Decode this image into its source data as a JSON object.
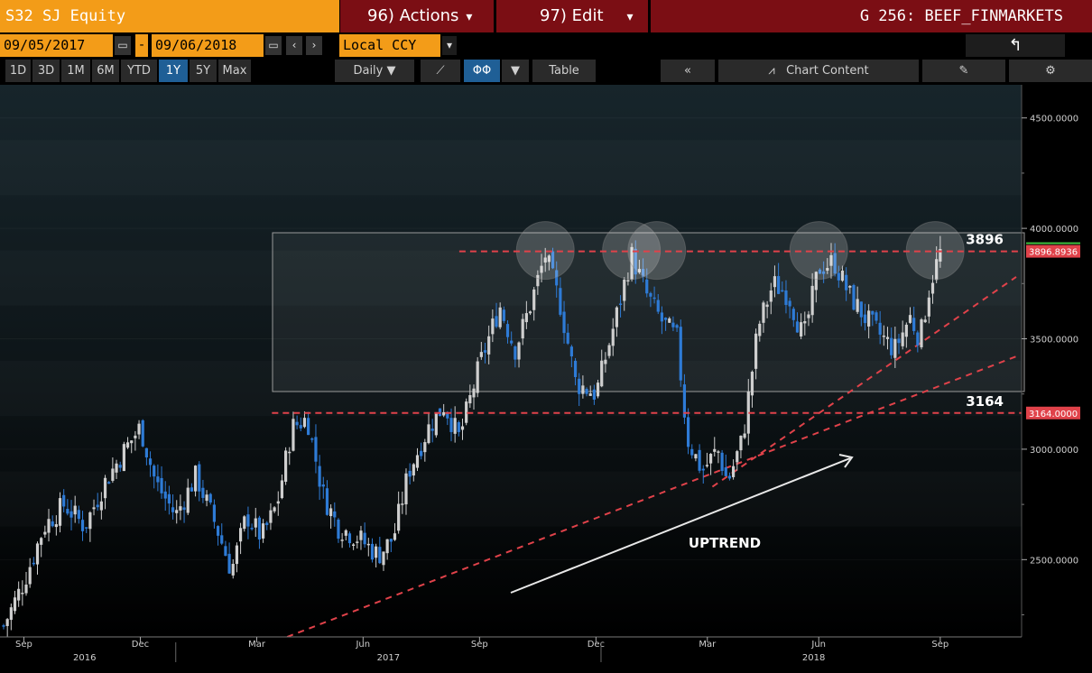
{
  "header": {
    "ticker": "S32 SJ Equity",
    "actions_label": "96) Actions",
    "edit_label": "97) Edit",
    "title": "G 256: BEEF_FINMARKETS"
  },
  "dates": {
    "start": "09/05/2017",
    "end": "09/06/2018",
    "separator": "-",
    "currency": "Local CCY"
  },
  "toolbar": {
    "periods": [
      "1D",
      "3D",
      "1M",
      "6M",
      "YTD",
      "1Y",
      "5Y",
      "Max"
    ],
    "selected_period": "1Y",
    "frequency": "Daily",
    "table_label": "Table",
    "collapse_label": "«",
    "chart_content_label": "Chart Content"
  },
  "colors": {
    "accent_orange": "#f39c18",
    "header_red": "#7b0e14",
    "selected_blue": "#1f5f96",
    "candle_up": "#cfcfcf",
    "candle_down": "#2e7bd6",
    "level_line": "#e0424a"
  },
  "chart_data": {
    "type": "candlestick",
    "y_axis": {
      "ylim": [
        2150,
        4650
      ],
      "ticks": [
        2500,
        3000,
        3500,
        4000,
        4500
      ],
      "tick_labels": [
        "2500.0000",
        "3000.0000",
        "3500.0000",
        "4000.0000",
        "4500.0000"
      ],
      "position": "right"
    },
    "x_axis": {
      "month_labels": [
        "Sep",
        "Dec",
        "Mar",
        "Jun",
        "Sep",
        "Dec",
        "Mar",
        "Jun",
        "Sep"
      ],
      "year_labels": [
        "2016",
        "2017",
        "2018"
      ]
    },
    "levels": [
      {
        "value": 3896,
        "label": "3896",
        "tag": "3896.8936"
      },
      {
        "value": 3164,
        "label": "3164",
        "tag": "3164.0000"
      }
    ],
    "last_price": 3896.8936,
    "annotations": [
      "UPTREND"
    ],
    "close_path": [
      [
        0,
        2200
      ],
      [
        0.02,
        2400
      ],
      [
        0.04,
        2650
      ],
      [
        0.06,
        2750
      ],
      [
        0.08,
        2650
      ],
      [
        0.1,
        2850
      ],
      [
        0.12,
        3000
      ],
      [
        0.135,
        3100
      ],
      [
        0.15,
        2850
      ],
      [
        0.17,
        2700
      ],
      [
        0.19,
        2880
      ],
      [
        0.21,
        2650
      ],
      [
        0.225,
        2450
      ],
      [
        0.24,
        2700
      ],
      [
        0.255,
        2600
      ],
      [
        0.27,
        2750
      ],
      [
        0.285,
        3100
      ],
      [
        0.3,
        3140
      ],
      [
        0.315,
        2800
      ],
      [
        0.33,
        2650
      ],
      [
        0.35,
        2600
      ],
      [
        0.37,
        2520
      ],
      [
        0.385,
        2600
      ],
      [
        0.4,
        2900
      ],
      [
        0.42,
        3100
      ],
      [
        0.435,
        3200
      ],
      [
        0.45,
        3050
      ],
      [
        0.47,
        3380
      ],
      [
        0.49,
        3650
      ],
      [
        0.505,
        3450
      ],
      [
        0.52,
        3650
      ],
      [
        0.535,
        3880
      ],
      [
        0.55,
        3650
      ],
      [
        0.565,
        3300
      ],
      [
        0.585,
        3250
      ],
      [
        0.605,
        3600
      ],
      [
        0.62,
        3880
      ],
      [
        0.635,
        3700
      ],
      [
        0.65,
        3580
      ],
      [
        0.665,
        3500
      ],
      [
        0.675,
        3050
      ],
      [
        0.69,
        2900
      ],
      [
        0.705,
        3000
      ],
      [
        0.715,
        2850
      ],
      [
        0.73,
        3050
      ],
      [
        0.745,
        3550
      ],
      [
        0.76,
        3750
      ],
      [
        0.775,
        3700
      ],
      [
        0.79,
        3500
      ],
      [
        0.805,
        3820
      ],
      [
        0.82,
        3850
      ],
      [
        0.835,
        3700
      ],
      [
        0.85,
        3600
      ],
      [
        0.865,
        3520
      ],
      [
        0.88,
        3450
      ],
      [
        0.895,
        3600
      ],
      [
        0.905,
        3500
      ],
      [
        0.915,
        3750
      ],
      [
        0.925,
        3890
      ]
    ],
    "price_range_scale": [
      2150,
      4650
    ]
  }
}
